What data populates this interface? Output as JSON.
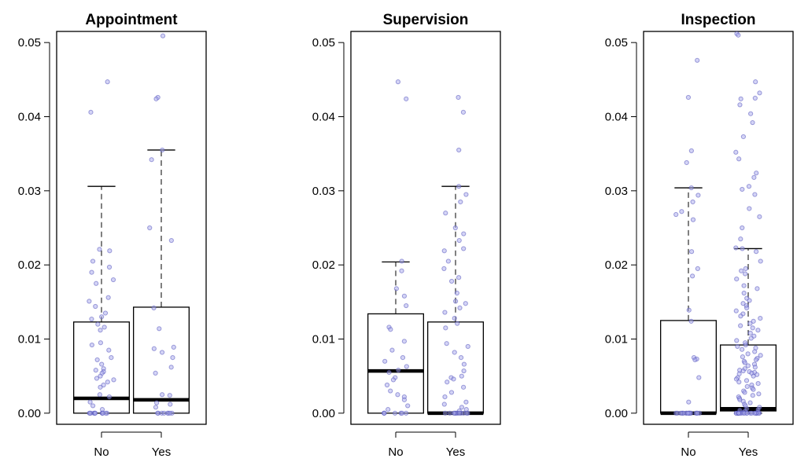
{
  "chart_data": [
    {
      "type": "box",
      "title": "Appointment",
      "categories": [
        "No",
        "Yes"
      ],
      "ylim": [
        -0.0015,
        0.0515
      ],
      "yticks": [
        0.0,
        0.01,
        0.02,
        0.03,
        0.04,
        0.05
      ],
      "ytick_labels": [
        "0.00",
        "0.01",
        "0.02",
        "0.03",
        "0.04",
        "0.05"
      ],
      "boxes": [
        {
          "category": "No",
          "whisker_low": 0.0,
          "q1": 0.0,
          "median": 0.002,
          "q3": 0.0123,
          "whisker_high": 0.0306
        },
        {
          "category": "Yes",
          "whisker_low": 0.0,
          "q1": 0.0,
          "median": 0.0018,
          "q3": 0.0143,
          "whisker_high": 0.0355
        }
      ],
      "points": [
        {
          "category": "No",
          "values": [
            0.0447,
            0.0406,
            0.0221,
            0.0219,
            0.0205,
            0.0197,
            0.019,
            0.018,
            0.0175,
            0.0156,
            0.0151,
            0.0144,
            0.0135,
            0.013,
            0.0127,
            0.012,
            0.0116,
            0.0112,
            0.0095,
            0.0092,
            0.0085,
            0.0075,
            0.0072,
            0.0066,
            0.006,
            0.0058,
            0.0056,
            0.0054,
            0.005,
            0.0047,
            0.0045,
            0.0042,
            0.0038,
            0.0035,
            0.0025,
            0.0022,
            0.0015,
            0.001,
            0.0005,
            0,
            0,
            0,
            0,
            0,
            0,
            0,
            0,
            0,
            0,
            0,
            0
          ]
        },
        {
          "category": "Yes",
          "values": [
            0.0509,
            0.0426,
            0.0424,
            0.0355,
            0.0342,
            0.025,
            0.0233,
            0.0142,
            0.0114,
            0.0089,
            0.0087,
            0.0082,
            0.0075,
            0.0062,
            0.0054,
            0.0025,
            0.0024,
            0.0014,
            0.0012,
            0.0008,
            0,
            0,
            0,
            0,
            0,
            0,
            0,
            0
          ]
        }
      ]
    },
    {
      "type": "box",
      "title": "Supervision",
      "categories": [
        "No",
        "Yes"
      ],
      "ylim": [
        -0.0015,
        0.0515
      ],
      "yticks": [
        0.0,
        0.01,
        0.02,
        0.03,
        0.04,
        0.05
      ],
      "ytick_labels": [
        "0.00",
        "0.01",
        "0.02",
        "0.03",
        "0.04",
        "0.05"
      ],
      "boxes": [
        {
          "category": "No",
          "whisker_low": 0.0,
          "q1": 0.0,
          "median": 0.0057,
          "q3": 0.0134,
          "whisker_high": 0.0204
        },
        {
          "category": "Yes",
          "whisker_low": 0.0,
          "q1": 0.0,
          "median": 0.0,
          "q3": 0.0123,
          "whisker_high": 0.0306
        }
      ],
      "points": [
        {
          "category": "No",
          "values": [
            0.0447,
            0.0424,
            0.0205,
            0.0192,
            0.0168,
            0.0158,
            0.0145,
            0.0116,
            0.0113,
            0.0097,
            0.0085,
            0.0075,
            0.007,
            0.0063,
            0.0058,
            0.0055,
            0.0048,
            0.0045,
            0.0038,
            0.003,
            0.0025,
            0.0022,
            0.0018,
            0.001,
            0.0005,
            0,
            0,
            0,
            0,
            0,
            0,
            0
          ]
        },
        {
          "category": "Yes",
          "values": [
            0.0426,
            0.0406,
            0.0355,
            0.0306,
            0.0295,
            0.0285,
            0.027,
            0.025,
            0.0242,
            0.0233,
            0.0222,
            0.0219,
            0.0205,
            0.0195,
            0.0183,
            0.0178,
            0.0162,
            0.0151,
            0.0148,
            0.0142,
            0.0136,
            0.0128,
            0.0121,
            0.0115,
            0.0094,
            0.009,
            0.0082,
            0.0075,
            0.0066,
            0.0057,
            0.005,
            0.0048,
            0.0046,
            0.0042,
            0.0035,
            0.0028,
            0.0022,
            0.0015,
            0.0012,
            0.0008,
            0.0005,
            0.0003,
            0,
            0,
            0,
            0,
            0,
            0,
            0,
            0,
            0,
            0,
            0,
            0
          ]
        }
      ]
    },
    {
      "type": "box",
      "title": "Inspection",
      "categories": [
        "No",
        "Yes"
      ],
      "ylim": [
        -0.0015,
        0.0515
      ],
      "yticks": [
        0.0,
        0.01,
        0.02,
        0.03,
        0.04,
        0.05
      ],
      "ytick_labels": [
        "0.00",
        "0.01",
        "0.02",
        "0.03",
        "0.04",
        "0.05"
      ],
      "boxes": [
        {
          "category": "No",
          "whisker_low": 0.0,
          "q1": 0.0,
          "median": 0.0,
          "q3": 0.0125,
          "whisker_high": 0.0304
        },
        {
          "category": "Yes",
          "whisker_low": 0.0,
          "q1": 0.0003,
          "median": 0.0006,
          "q3": 0.0092,
          "whisker_high": 0.0222
        }
      ],
      "points": [
        {
          "category": "No",
          "values": [
            0.0476,
            0.0426,
            0.0354,
            0.0338,
            0.0304,
            0.0294,
            0.0285,
            0.0272,
            0.0268,
            0.0261,
            0.0218,
            0.0195,
            0.0185,
            0.0139,
            0.0124,
            0.0075,
            0.0073,
            0.0072,
            0.0048,
            0.0015,
            0,
            0,
            0,
            0,
            0,
            0,
            0,
            0,
            0,
            0,
            0,
            0,
            0,
            0,
            0,
            0,
            0,
            0
          ]
        },
        {
          "category": "Yes",
          "values": [
            0.0512,
            0.051,
            0.0447,
            0.0432,
            0.0425,
            0.0424,
            0.0416,
            0.0404,
            0.0392,
            0.0373,
            0.0352,
            0.0343,
            0.0324,
            0.0318,
            0.0306,
            0.0302,
            0.0295,
            0.0276,
            0.0265,
            0.025,
            0.0235,
            0.0223,
            0.0222,
            0.0218,
            0.0205,
            0.0195,
            0.0192,
            0.0188,
            0.0181,
            0.0172,
            0.0168,
            0.0162,
            0.0155,
            0.0152,
            0.0148,
            0.0145,
            0.0142,
            0.0138,
            0.0134,
            0.0131,
            0.0128,
            0.0124,
            0.0121,
            0.0118,
            0.0115,
            0.0112,
            0.0108,
            0.0104,
            0.0101,
            0.0098,
            0.0095,
            0.0092,
            0.009,
            0.0088,
            0.0086,
            0.0083,
            0.008,
            0.0078,
            0.0076,
            0.0074,
            0.0072,
            0.007,
            0.0068,
            0.0066,
            0.0064,
            0.0062,
            0.006,
            0.0058,
            0.0057,
            0.0056,
            0.0055,
            0.0054,
            0.0053,
            0.0052,
            0.005,
            0.0048,
            0.0046,
            0.0044,
            0.0042,
            0.004,
            0.0038,
            0.0036,
            0.0034,
            0.0032,
            0.003,
            0.0028,
            0.0026,
            0.0024,
            0.0022,
            0.002,
            0.0018,
            0.0016,
            0.0014,
            0.0012,
            0.001,
            0.0008,
            0.0006,
            0.0005,
            0.0004,
            0.0003,
            0.0002,
            0.0001,
            0,
            0,
            0,
            0,
            0,
            0,
            0,
            0,
            0,
            0,
            0,
            0,
            0,
            0,
            0,
            0,
            0,
            0,
            0,
            0,
            0,
            0,
            0,
            0
          ]
        }
      ]
    }
  ],
  "colors": {
    "point_fill": "#aaaaee",
    "point_stroke": "#5555bb",
    "box_stroke": "#000000",
    "background": "#ffffff"
  }
}
